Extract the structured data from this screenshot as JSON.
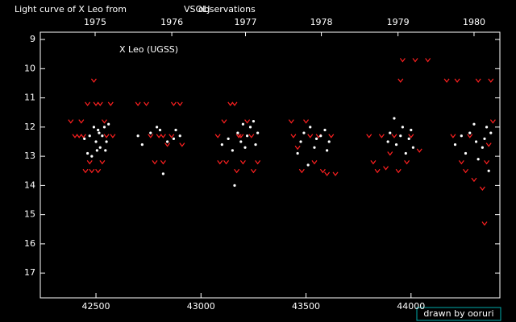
{
  "chart_data": {
    "type": "scatter",
    "title_parts": [
      "Light curve of X Leo from",
      "VSOLJ",
      "observations"
    ],
    "title_colors": [
      "#ffffff",
      "#ffff00",
      "#ffffff"
    ],
    "label": "X Leo (UGSS)",
    "credit": "drawn by ooruri",
    "credit_color": "#00ffff",
    "xlim": [
      42235,
      44423
    ],
    "ylim": [
      8.75,
      17.85
    ],
    "y_inverted": true,
    "xticks": [
      42500,
      43000,
      43500,
      44000
    ],
    "yticks": [
      9,
      10,
      11,
      12,
      13,
      14,
      15,
      16,
      17
    ],
    "x2ticks": [
      {
        "value": 42496,
        "label": "1975"
      },
      {
        "value": 42861,
        "label": "1976"
      },
      {
        "value": 43212,
        "label": "1977"
      },
      {
        "value": 43573,
        "label": "1978"
      },
      {
        "value": 43938,
        "label": "1979"
      },
      {
        "value": 44300,
        "label": "1980"
      }
    ],
    "series": [
      {
        "color": "#ff2020",
        "marker": "v",
        "x": [
          42380,
          42400,
          42420,
          42430,
          42440,
          42450,
          42470,
          42480,
          42490,
          42500,
          42520,
          42530,
          42540,
          42550,
          42570,
          42580,
          42460,
          42510,
          42700,
          42740,
          42760,
          42780,
          42800,
          42820,
          42840,
          42860,
          42870,
          42900,
          42910,
          42820,
          43080,
          43090,
          43110,
          43120,
          43140,
          43160,
          43170,
          43190,
          43200,
          43220,
          43240,
          43250,
          43270,
          43180,
          43440,
          43460,
          43480,
          43500,
          43520,
          43540,
          43560,
          43580,
          43600,
          43620,
          43640,
          43430,
          43800,
          43820,
          43840,
          43860,
          43880,
          43900,
          43920,
          43940,
          43960,
          43980,
          44000,
          44020,
          44040,
          43950,
          44080,
          44170,
          44200,
          44220,
          44240,
          44260,
          44280,
          44300,
          44320,
          44340,
          44350,
          44360,
          44370,
          44380,
          44390
        ],
        "y": [
          11.8,
          12.3,
          12.3,
          11.8,
          12.3,
          13.5,
          13.2,
          13.5,
          10.4,
          11.2,
          11.2,
          13.2,
          11.8,
          12.3,
          11.2,
          12.3,
          11.2,
          13.5,
          11.2,
          11.2,
          12.3,
          13.2,
          12.3,
          13.2,
          12.6,
          12.3,
          11.2,
          11.2,
          12.6,
          12.3,
          12.3,
          13.2,
          11.8,
          13.2,
          11.2,
          11.2,
          13.5,
          12.3,
          13.2,
          11.8,
          12.3,
          13.5,
          13.2,
          12.3,
          12.3,
          12.7,
          13.5,
          11.8,
          12.3,
          13.2,
          12.3,
          13.5,
          13.6,
          12.3,
          13.6,
          11.8,
          12.3,
          13.2,
          13.5,
          12.3,
          13.4,
          12.9,
          12.3,
          13.5,
          9.7,
          13.2,
          12.3,
          9.7,
          12.8,
          10.4,
          9.7,
          10.4,
          12.3,
          10.4,
          13.2,
          13.5,
          12.3,
          13.8,
          10.4,
          14.1,
          15.3,
          13.2,
          12.6,
          10.4,
          11.8
        ]
      },
      {
        "color": "#ffffff",
        "marker": "dot",
        "x": [
          42470,
          42490,
          42500,
          42505,
          42510,
          42520,
          42530,
          42540,
          42550,
          42560,
          42445,
          42460,
          42480,
          42515,
          42545,
          42700,
          42720,
          42760,
          42790,
          42805,
          42820,
          42840,
          42870,
          42880,
          42900,
          43100,
          43130,
          43150,
          43160,
          43175,
          43190,
          43200,
          43210,
          43220,
          43235,
          43250,
          43260,
          43270,
          43460,
          43475,
          43490,
          43510,
          43520,
          43540,
          43550,
          43570,
          43590,
          43600,
          43610,
          43890,
          43900,
          43920,
          43930,
          43950,
          43960,
          43975,
          43990,
          44000,
          44010,
          44210,
          44240,
          44260,
          44280,
          44300,
          44310,
          44320,
          44340,
          44350,
          44360,
          44370,
          44380
        ],
        "y": [
          12.3,
          12.0,
          12.5,
          12.8,
          12.1,
          12.7,
          12.3,
          12.0,
          12.5,
          11.9,
          12.4,
          12.9,
          13.0,
          12.2,
          12.8,
          12.3,
          12.6,
          12.2,
          12.0,
          12.1,
          13.6,
          12.5,
          12.4,
          12.1,
          12.3,
          12.6,
          12.4,
          12.8,
          14.0,
          12.2,
          12.5,
          11.9,
          12.7,
          12.3,
          12.0,
          11.8,
          12.6,
          12.2,
          12.9,
          12.5,
          12.2,
          13.3,
          12.0,
          12.7,
          12.4,
          12.3,
          12.1,
          12.8,
          12.5,
          12.5,
          12.2,
          11.7,
          12.6,
          12.3,
          12.0,
          12.9,
          12.4,
          12.1,
          12.7,
          12.6,
          12.3,
          12.9,
          12.2,
          11.9,
          12.5,
          13.1,
          12.7,
          12.4,
          12.0,
          13.5,
          12.2
        ]
      }
    ]
  }
}
